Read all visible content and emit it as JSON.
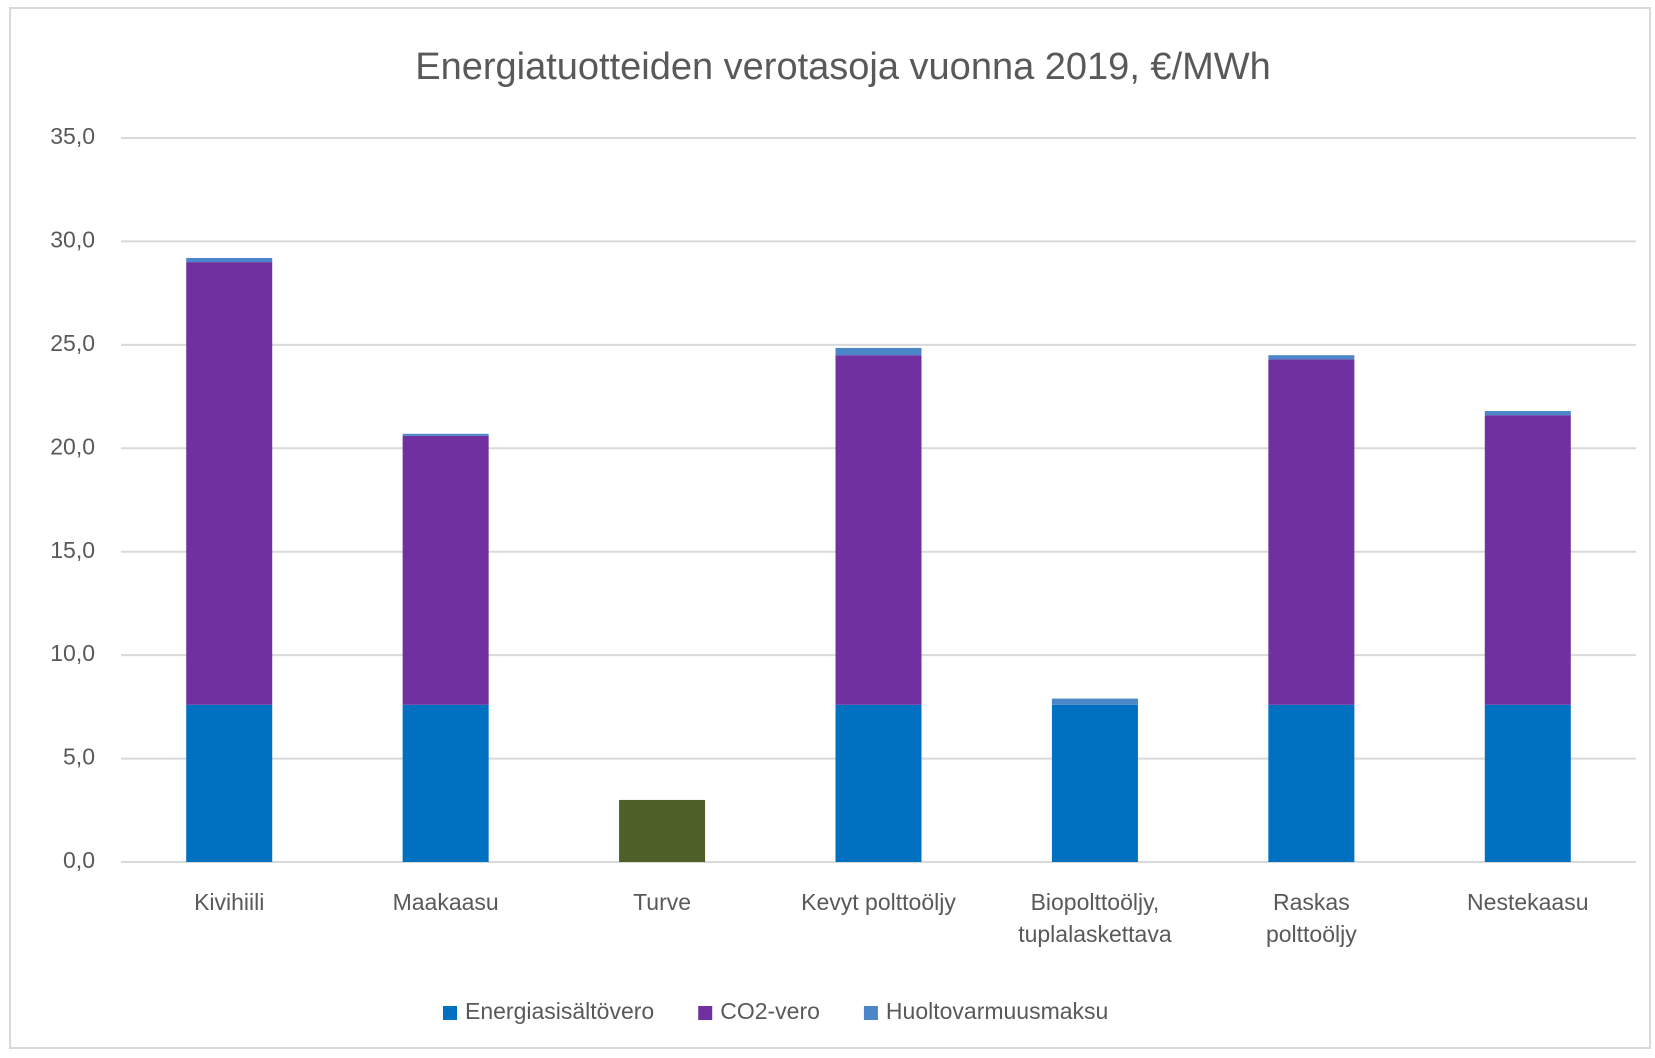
{
  "chart_data": {
    "type": "bar",
    "stacked": true,
    "title": "Energiatuotteiden verotasoja vuonna 2019, €/MWh",
    "categories": [
      "Kivihiili",
      "Maakaasu",
      "Turve",
      "Kevyt polttoöljy",
      "Biopolttoöljy,\ntuplalaskettava",
      "Raskas\npolttoöljy",
      "Nestekaasu"
    ],
    "series": [
      {
        "name": "Energiasisältövero",
        "color": "#0070c0",
        "colors": [
          "#0070c0",
          "#0070c0",
          "#4e5f27",
          "#0070c0",
          "#0070c0",
          "#0070c0",
          "#0070c0"
        ],
        "values": [
          7.6,
          7.6,
          3.0,
          7.6,
          7.6,
          7.6,
          7.6
        ]
      },
      {
        "name": "CO2-vero",
        "color": "#7030a0",
        "values": [
          21.4,
          13.0,
          0,
          16.9,
          0,
          16.7,
          14.0
        ]
      },
      {
        "name": "Huoltovarmuusmaksu",
        "color": "#4a86c8",
        "values": [
          0.2,
          0.1,
          0,
          0.35,
          0.3,
          0.2,
          0.2
        ]
      }
    ],
    "ylim": [
      0,
      35
    ],
    "yticks": [
      {
        "value": 0,
        "label": "0,0"
      },
      {
        "value": 5,
        "label": "5,0"
      },
      {
        "value": 10,
        "label": "10,0"
      },
      {
        "value": 15,
        "label": "15,0"
      },
      {
        "value": 20,
        "label": "20,0"
      },
      {
        "value": 25,
        "label": "25,0"
      },
      {
        "value": 30,
        "label": "30,0"
      },
      {
        "value": 35,
        "label": "35,0"
      }
    ],
    "grid": true,
    "legend": "bottom"
  }
}
